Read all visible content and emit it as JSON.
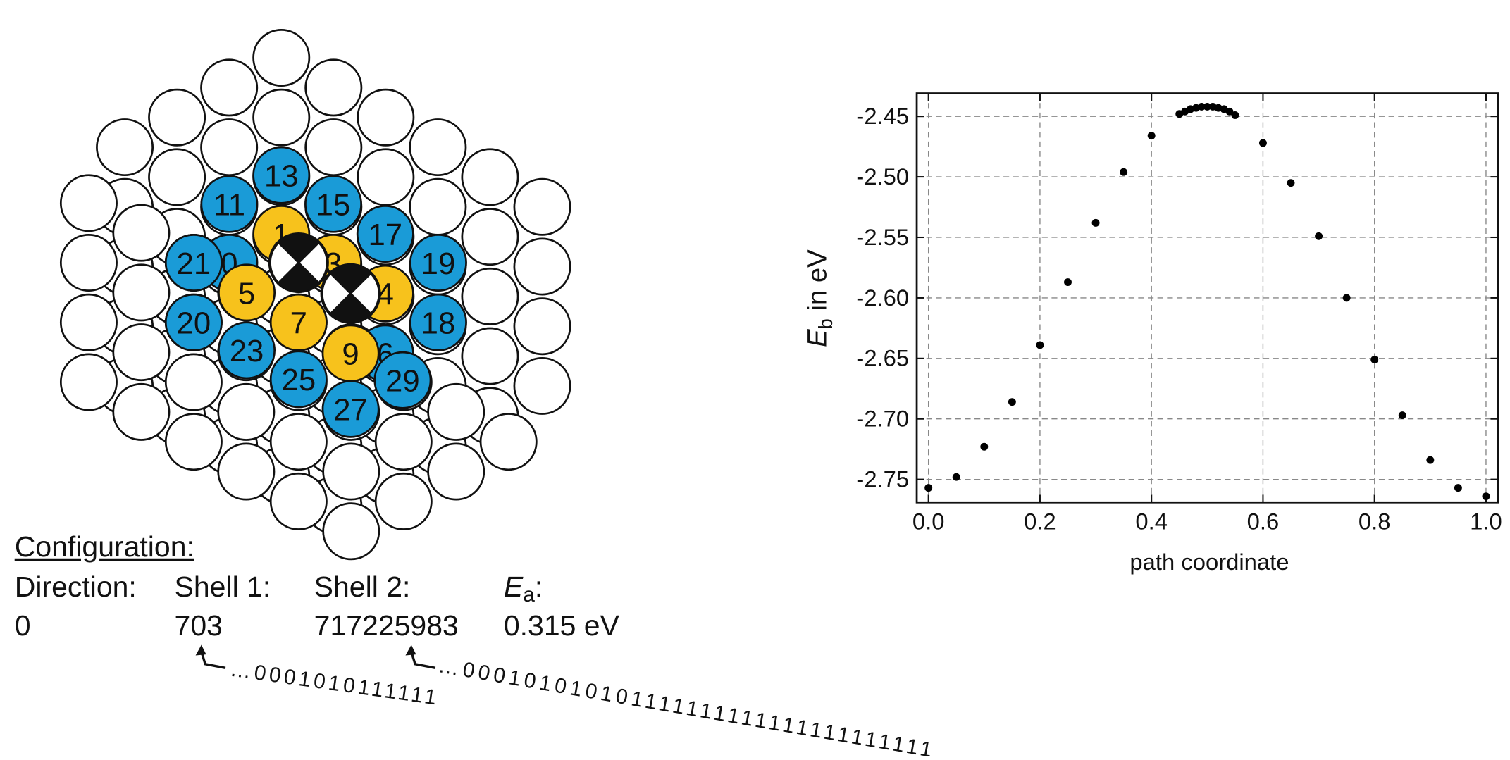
{
  "diagram": {
    "sites": [
      {
        "label": "0",
        "color": "#1a9bd7"
      },
      {
        "label": "6",
        "color": "#1a9bd7"
      },
      {
        "label": "13",
        "color": "#1a9bd7"
      },
      {
        "label": "11",
        "color": "#1a9bd7"
      },
      {
        "label": "15",
        "color": "#1a9bd7"
      },
      {
        "label": "17",
        "color": "#1a9bd7"
      },
      {
        "label": "21",
        "color": "#1a9bd7"
      },
      {
        "label": "19",
        "color": "#1a9bd7"
      },
      {
        "label": "20",
        "color": "#1a9bd7"
      },
      {
        "label": "18",
        "color": "#1a9bd7"
      },
      {
        "label": "23",
        "color": "#1a9bd7"
      },
      {
        "label": "25",
        "color": "#1a9bd7"
      },
      {
        "label": "27",
        "color": "#1a9bd7"
      },
      {
        "label": "29",
        "color": "#1a9bd7"
      },
      {
        "label": "1",
        "color": "#f7c21c"
      },
      {
        "label": "3",
        "color": "#f7c21c"
      },
      {
        "label": "4",
        "color": "#f7c21c"
      },
      {
        "label": "5",
        "color": "#f7c21c"
      },
      {
        "label": "7",
        "color": "#f7c21c"
      },
      {
        "label": "9",
        "color": "#f7c21c"
      }
    ]
  },
  "configuration": {
    "heading": "Configuration:",
    "headers": [
      "Direction:",
      "Shell 1:",
      "Shell 2:",
      {
        "symbol": "E",
        "subscript": "a",
        "suffix": ":"
      }
    ],
    "values": [
      "0",
      "703",
      "717225983",
      "0.315 eV"
    ],
    "binary": [
      "…0001010111111",
      "…000101010101111111111111111111111"
    ]
  },
  "chart_data": {
    "type": "scatter",
    "x": [
      0,
      0.05,
      0.1,
      0.15,
      0.2,
      0.25,
      0.3,
      0.35,
      0.4,
      0.45,
      0.46,
      0.47,
      0.48,
      0.49,
      0.5,
      0.51,
      0.52,
      0.53,
      0.54,
      0.55,
      0.6,
      0.65,
      0.7,
      0.75,
      0.8,
      0.85,
      0.9,
      0.95,
      1
    ],
    "values": [
      -2.757,
      -2.748,
      -2.723,
      -2.686,
      -2.639,
      -2.587,
      -2.538,
      -2.496,
      -2.466,
      -2.448,
      -2.446,
      -2.444,
      -2.443,
      -2.442,
      -2.442,
      -2.442,
      -2.443,
      -2.444,
      -2.446,
      -2.449,
      -2.472,
      -2.505,
      -2.549,
      -2.6,
      -2.651,
      -2.697,
      -2.734,
      -2.757,
      -2.764
    ],
    "color": "#000000",
    "xlim": [
      -0.021,
      1.022
    ],
    "ylim": [
      -2.769,
      -2.431
    ],
    "xticks": [
      {
        "value": 0,
        "label": "0.0"
      },
      0.2,
      0.4,
      0.6,
      0.8,
      {
        "value": 1,
        "label": "1.0"
      }
    ],
    "yticks": [
      -2.45,
      {
        "value": -2.5,
        "label": "-2.50"
      },
      -2.55,
      {
        "value": -2.6,
        "label": "-2.60"
      },
      -2.65,
      {
        "value": -2.7,
        "label": "-2.70"
      },
      -2.75
    ],
    "xlabel": "path coordinate",
    "ylabel": {
      "symbol": "E",
      "subscript": "b",
      "suffix": " in eV"
    },
    "grid": true
  }
}
